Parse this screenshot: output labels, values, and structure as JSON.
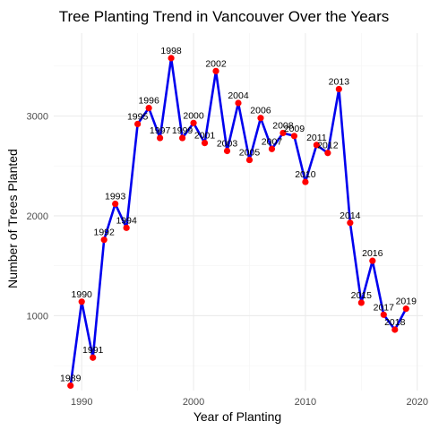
{
  "chart_data": {
    "type": "line",
    "title": "Tree Planting Trend in Vancouver Over the Years",
    "xlabel": "Year of Planting",
    "ylabel": "Number of Trees Planted",
    "xlim": [
      1987.5,
      2020.5
    ],
    "ylim": [
      250,
      3830
    ],
    "x_ticks": [
      1990,
      2000,
      2010,
      2020
    ],
    "x_minor_ticks": [
      1995,
      2005,
      2015
    ],
    "y_ticks": [
      1000,
      2000,
      3000
    ],
    "y_minor_ticks": [
      500,
      1500,
      2500,
      3500
    ],
    "grid": true,
    "legend": "none",
    "line_color": "#0000ee",
    "point_color": "#ff0000",
    "series": [
      {
        "x": [
          1989,
          1990,
          1991,
          1992,
          1993,
          1994,
          1995,
          1996,
          1997,
          1998,
          1999,
          2000,
          2001,
          2002,
          2003,
          2004,
          2005,
          2006,
          2007,
          2008,
          2009,
          2010,
          2011,
          2012,
          2013,
          2014,
          2015,
          2016,
          2017,
          2018,
          2019
        ],
        "y": [
          300,
          1140,
          580,
          1760,
          2120,
          1880,
          2920,
          3080,
          2780,
          3580,
          2780,
          2930,
          2730,
          3450,
          2650,
          3130,
          2560,
          2980,
          2670,
          2830,
          2800,
          2340,
          2710,
          2630,
          3270,
          1930,
          1130,
          1550,
          1010,
          860,
          1070
        ]
      }
    ],
    "point_labels": [
      "1989",
      "1990",
      "1991",
      "1992",
      "1993",
      "1994",
      "1995",
      "1996",
      "1997",
      "1998",
      "1999",
      "2000",
      "2001",
      "2002",
      "2003",
      "2004",
      "2005",
      "2006",
      "2007",
      "2008",
      "2009",
      "2010",
      "2011",
      "2012",
      "2013",
      "2014",
      "2015",
      "2016",
      "2017",
      "2018",
      "2019"
    ]
  }
}
